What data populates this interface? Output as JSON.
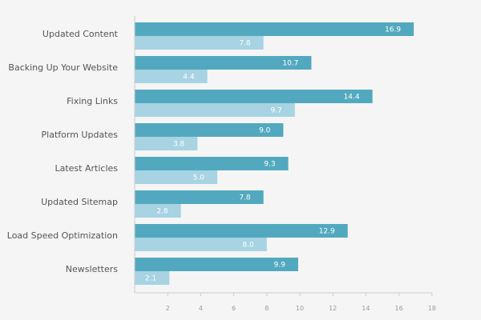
{
  "chart_data": {
    "type": "bar",
    "orientation": "horizontal",
    "categories": [
      "Updated Content",
      "Backing Up Your Website",
      "Fixing Links",
      "Platform Updates",
      "Latest Articles",
      "Updated Sitemap",
      "Load Speed Optimization",
      "Newsletters"
    ],
    "series": [
      {
        "values": [
          16.9,
          10.7,
          14.4,
          9.0,
          9.3,
          7.8,
          12.9,
          9.9
        ],
        "color": "#52a9bf"
      },
      {
        "values": [
          7.8,
          4.4,
          9.7,
          3.8,
          5.0,
          2.8,
          8.0,
          2.1
        ],
        "color": "#a7d3e2"
      }
    ],
    "value_labels": [
      [
        "16.9",
        "10.7",
        "14.4",
        "9.0",
        "9.3",
        "7.8",
        "12.9",
        "9.9"
      ],
      [
        "7.8",
        "4.4",
        "9.7",
        "3.8",
        "5.0",
        "2.8",
        "8.0",
        "2.1"
      ]
    ],
    "xticks": [
      2,
      4,
      6,
      8,
      10,
      12,
      14,
      16,
      18
    ],
    "xlim": [
      0,
      18
    ],
    "title": "",
    "xlabel": "",
    "ylabel": "",
    "grid": false,
    "legend": "none"
  }
}
